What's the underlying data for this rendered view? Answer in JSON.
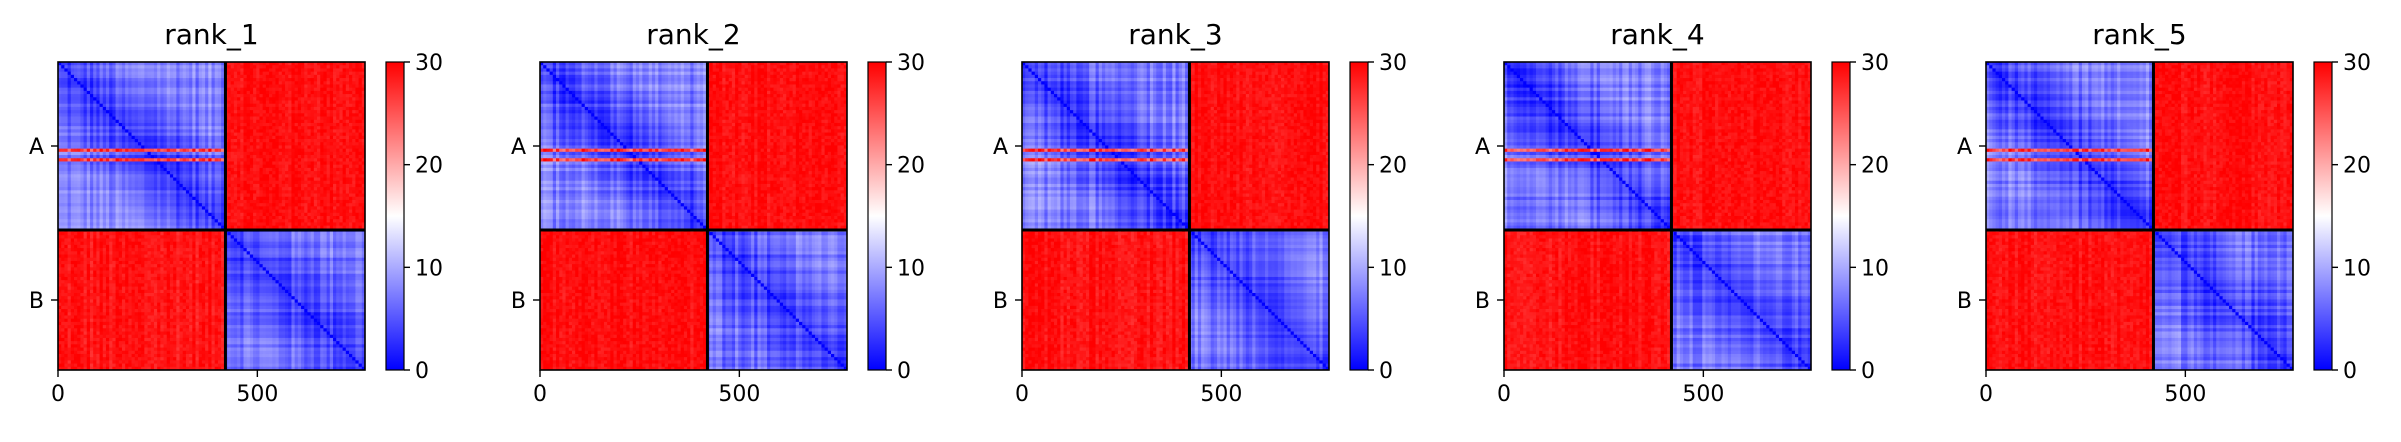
{
  "chart_data": [
    {
      "type": "heatmap",
      "title": "rank_1",
      "xlabel": "",
      "ylabel": "",
      "xlim": [
        0,
        770
      ],
      "xticks": [
        0,
        500
      ],
      "yticklabels": [
        "A",
        "B"
      ],
      "chains": [
        {
          "name": "A",
          "start": 0,
          "end": 420
        },
        {
          "name": "B",
          "start": 420,
          "end": 770
        }
      ],
      "matrix_blocks": [
        {
          "rows": "A",
          "cols": "A",
          "value_range": [
            1,
            14
          ]
        },
        {
          "rows": "A",
          "cols": "B",
          "value_range": [
            26,
            30
          ]
        },
        {
          "rows": "B",
          "cols": "A",
          "value_range": [
            24,
            30
          ]
        },
        {
          "rows": "B",
          "cols": "B",
          "value_range": [
            2,
            12
          ]
        }
      ],
      "colorbar": {
        "vmin": 0,
        "vmax": 30,
        "ticks": [
          0,
          10,
          20,
          30
        ],
        "colormap": "bwr",
        "low": "#0000ff",
        "mid": "#ffffff",
        "high": "#ff0000"
      }
    },
    {
      "type": "heatmap",
      "title": "rank_2",
      "xlabel": "",
      "ylabel": "",
      "xlim": [
        0,
        770
      ],
      "xticks": [
        0,
        500
      ],
      "yticklabels": [
        "A",
        "B"
      ],
      "chains": [
        {
          "name": "A",
          "start": 0,
          "end": 420
        },
        {
          "name": "B",
          "start": 420,
          "end": 770
        }
      ],
      "matrix_blocks": [
        {
          "rows": "A",
          "cols": "A",
          "value_range": [
            1,
            14
          ]
        },
        {
          "rows": "A",
          "cols": "B",
          "value_range": [
            26,
            30
          ]
        },
        {
          "rows": "B",
          "cols": "A",
          "value_range": [
            26,
            30
          ]
        },
        {
          "rows": "B",
          "cols": "B",
          "value_range": [
            2,
            12
          ]
        }
      ],
      "colorbar": {
        "vmin": 0,
        "vmax": 30,
        "ticks": [
          0,
          10,
          20,
          30
        ],
        "colormap": "bwr",
        "low": "#0000ff",
        "mid": "#ffffff",
        "high": "#ff0000"
      }
    },
    {
      "type": "heatmap",
      "title": "rank_3",
      "xlabel": "",
      "ylabel": "",
      "xlim": [
        0,
        770
      ],
      "xticks": [
        0,
        500
      ],
      "yticklabels": [
        "A",
        "B"
      ],
      "chains": [
        {
          "name": "A",
          "start": 0,
          "end": 420
        },
        {
          "name": "B",
          "start": 420,
          "end": 770
        }
      ],
      "matrix_blocks": [
        {
          "rows": "A",
          "cols": "A",
          "value_range": [
            1,
            14
          ]
        },
        {
          "rows": "A",
          "cols": "B",
          "value_range": [
            26,
            30
          ]
        },
        {
          "rows": "B",
          "cols": "A",
          "value_range": [
            25,
            30
          ]
        },
        {
          "rows": "B",
          "cols": "B",
          "value_range": [
            2,
            12
          ]
        }
      ],
      "colorbar": {
        "vmin": 0,
        "vmax": 30,
        "ticks": [
          0,
          10,
          20,
          30
        ],
        "colormap": "bwr",
        "low": "#0000ff",
        "mid": "#ffffff",
        "high": "#ff0000"
      }
    },
    {
      "type": "heatmap",
      "title": "rank_4",
      "xlabel": "",
      "ylabel": "",
      "xlim": [
        0,
        770
      ],
      "xticks": [
        0,
        500
      ],
      "yticklabels": [
        "A",
        "B"
      ],
      "chains": [
        {
          "name": "A",
          "start": 0,
          "end": 420
        },
        {
          "name": "B",
          "start": 420,
          "end": 770
        }
      ],
      "matrix_blocks": [
        {
          "rows": "A",
          "cols": "A",
          "value_range": [
            1,
            14
          ]
        },
        {
          "rows": "A",
          "cols": "B",
          "value_range": [
            26,
            30
          ]
        },
        {
          "rows": "B",
          "cols": "A",
          "value_range": [
            25,
            30
          ]
        },
        {
          "rows": "B",
          "cols": "B",
          "value_range": [
            2,
            12
          ]
        }
      ],
      "colorbar": {
        "vmin": 0,
        "vmax": 30,
        "ticks": [
          0,
          10,
          20,
          30
        ],
        "colormap": "bwr",
        "low": "#0000ff",
        "mid": "#ffffff",
        "high": "#ff0000"
      }
    },
    {
      "type": "heatmap",
      "title": "rank_5",
      "xlabel": "",
      "ylabel": "",
      "xlim": [
        0,
        770
      ],
      "xticks": [
        0,
        500
      ],
      "yticklabels": [
        "A",
        "B"
      ],
      "chains": [
        {
          "name": "A",
          "start": 0,
          "end": 420
        },
        {
          "name": "B",
          "start": 420,
          "end": 770
        }
      ],
      "matrix_blocks": [
        {
          "rows": "A",
          "cols": "A",
          "value_range": [
            1,
            14
          ]
        },
        {
          "rows": "A",
          "cols": "B",
          "value_range": [
            26,
            30
          ]
        },
        {
          "rows": "B",
          "cols": "A",
          "value_range": [
            25,
            30
          ]
        },
        {
          "rows": "B",
          "cols": "B",
          "value_range": [
            2,
            12
          ]
        }
      ],
      "colorbar": {
        "vmin": 0,
        "vmax": 30,
        "ticks": [
          0,
          10,
          20,
          30
        ],
        "colormap": "bwr",
        "low": "#0000ff",
        "mid": "#ffffff",
        "high": "#ff0000"
      }
    }
  ]
}
